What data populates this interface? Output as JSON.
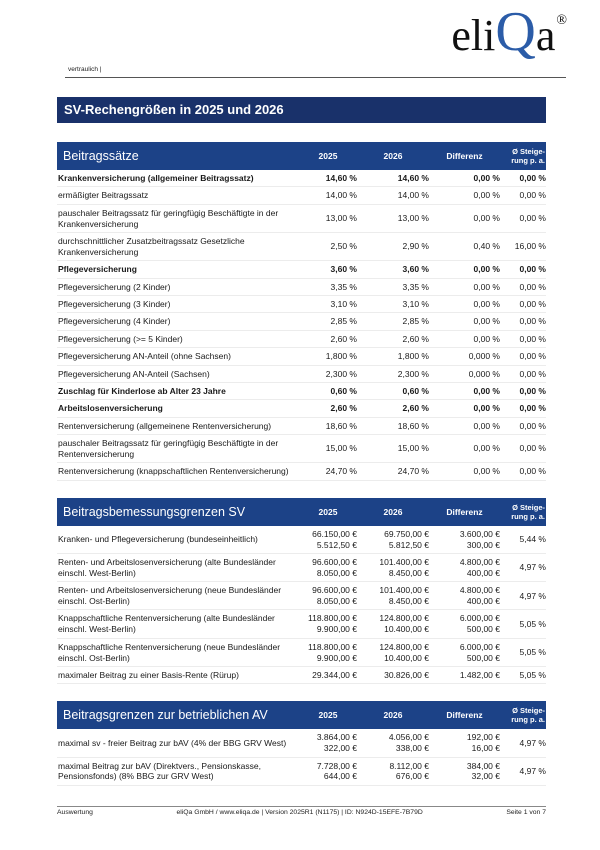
{
  "header": {
    "confidential": "vertraulich |",
    "logo": {
      "prefix": "eli",
      "accent": "Q",
      "suffix": "a",
      "registered": "®"
    },
    "title": "SV-Rechengrößen in 2025 und 2026"
  },
  "columns": {
    "year1": "2025",
    "year2": "2026",
    "diff": "Differenz",
    "steig_l1": "Ø Steige-",
    "steig_l2": "rung p. a."
  },
  "colors": {
    "title_bar": "#19316A",
    "table_header": "#1C4287",
    "logo_accent": "#2B5CA8"
  },
  "tables": [
    {
      "title": "Beitragssätze",
      "rows": [
        {
          "label": "Krankenversicherung (allgemeiner Beitragssatz)",
          "bold": true,
          "c2025": [
            "14,60 %"
          ],
          "c2026": [
            "14,60 %"
          ],
          "diff": [
            "0,00 %"
          ],
          "steig": [
            "0,00 %"
          ]
        },
        {
          "label": "ermäßigter Beitragssatz",
          "bold": false,
          "c2025": [
            "14,00 %"
          ],
          "c2026": [
            "14,00 %"
          ],
          "diff": [
            "0,00 %"
          ],
          "steig": [
            "0,00 %"
          ]
        },
        {
          "label": "pauschaler Beitragssatz für geringfügig Beschäftigte in der Krankenversicherung",
          "bold": false,
          "c2025": [
            "13,00 %"
          ],
          "c2026": [
            "13,00 %"
          ],
          "diff": [
            "0,00 %"
          ],
          "steig": [
            "0,00 %"
          ]
        },
        {
          "label": "durchschnittlicher Zusatzbeitragssatz Gesetzliche Krankenversicherung",
          "bold": false,
          "c2025": [
            "2,50 %"
          ],
          "c2026": [
            "2,90 %"
          ],
          "diff": [
            "0,40 %"
          ],
          "steig": [
            "16,00 %"
          ]
        },
        {
          "label": "Pflegeversicherung",
          "bold": true,
          "c2025": [
            "3,60 %"
          ],
          "c2026": [
            "3,60 %"
          ],
          "diff": [
            "0,00 %"
          ],
          "steig": [
            "0,00 %"
          ]
        },
        {
          "label": "Pflegeversicherung (2 Kinder)",
          "bold": false,
          "c2025": [
            "3,35 %"
          ],
          "c2026": [
            "3,35 %"
          ],
          "diff": [
            "0,00 %"
          ],
          "steig": [
            "0,00 %"
          ]
        },
        {
          "label": "Pflegeversicherung (3 Kinder)",
          "bold": false,
          "c2025": [
            "3,10 %"
          ],
          "c2026": [
            "3,10 %"
          ],
          "diff": [
            "0,00 %"
          ],
          "steig": [
            "0,00 %"
          ]
        },
        {
          "label": "Pflegeversicherung (4 Kinder)",
          "bold": false,
          "c2025": [
            "2,85 %"
          ],
          "c2026": [
            "2,85 %"
          ],
          "diff": [
            "0,00 %"
          ],
          "steig": [
            "0,00 %"
          ]
        },
        {
          "label": "Pflegeversicherung (>= 5 Kinder)",
          "bold": false,
          "c2025": [
            "2,60 %"
          ],
          "c2026": [
            "2,60 %"
          ],
          "diff": [
            "0,00 %"
          ],
          "steig": [
            "0,00 %"
          ]
        },
        {
          "label": "Pflegeversicherung AN-Anteil (ohne Sachsen)",
          "bold": false,
          "c2025": [
            "1,800 %"
          ],
          "c2026": [
            "1,800 %"
          ],
          "diff": [
            "0,000 %"
          ],
          "steig": [
            "0,00 %"
          ]
        },
        {
          "label": "Pflegeversicherung AN-Anteil (Sachsen)",
          "bold": false,
          "c2025": [
            "2,300 %"
          ],
          "c2026": [
            "2,300 %"
          ],
          "diff": [
            "0,000 %"
          ],
          "steig": [
            "0,00 %"
          ]
        },
        {
          "label": "Zuschlag für Kinderlose ab Alter 23 Jahre",
          "bold": true,
          "c2025": [
            "0,60 %"
          ],
          "c2026": [
            "0,60 %"
          ],
          "diff": [
            "0,00 %"
          ],
          "steig": [
            "0,00 %"
          ]
        },
        {
          "label": "Arbeitslosenversicherung",
          "bold": true,
          "c2025": [
            "2,60 %"
          ],
          "c2026": [
            "2,60 %"
          ],
          "diff": [
            "0,00 %"
          ],
          "steig": [
            "0,00 %"
          ]
        },
        {
          "label": "Rentenversicherung (allgemeinene Rentenversicherung)",
          "bold": false,
          "c2025": [
            "18,60 %"
          ],
          "c2026": [
            "18,60 %"
          ],
          "diff": [
            "0,00 %"
          ],
          "steig": [
            "0,00 %"
          ]
        },
        {
          "label": "pauschaler Beitragssatz für geringfügig Beschäftigte in der Rentenversicherung",
          "bold": false,
          "c2025": [
            "15,00 %"
          ],
          "c2026": [
            "15,00 %"
          ],
          "diff": [
            "0,00 %"
          ],
          "steig": [
            "0,00 %"
          ]
        },
        {
          "label": "Rentenversicherung (knappschaftlichen Rentenversicherung)",
          "bold": false,
          "c2025": [
            "24,70 %"
          ],
          "c2026": [
            "24,70 %"
          ],
          "diff": [
            "0,00 %"
          ],
          "steig": [
            "0,00 %"
          ]
        }
      ]
    },
    {
      "title": "Beitragsbemessungsgrenzen SV",
      "rows": [
        {
          "label": "Kranken- und Pflegeversicherung (bundeseinheitlich)",
          "bold": false,
          "c2025": [
            "66.150,00 €",
            "5.512,50 €"
          ],
          "c2026": [
            "69.750,00 €",
            "5.812,50 €"
          ],
          "diff": [
            "3.600,00 €",
            "300,00 €"
          ],
          "steig": [
            "5,44 %"
          ]
        },
        {
          "label": "Renten- und Arbeitslosenversicherung (alte Bundesländer einschl. West-Berlin)",
          "bold": false,
          "c2025": [
            "96.600,00 €",
            "8.050,00 €"
          ],
          "c2026": [
            "101.400,00 €",
            "8.450,00 €"
          ],
          "diff": [
            "4.800,00 €",
            "400,00 €"
          ],
          "steig": [
            "4,97 %"
          ]
        },
        {
          "label": "Renten- und Arbeitslosenversicherung (neue Bundesländer einschl. Ost-Berlin)",
          "bold": false,
          "c2025": [
            "96.600,00 €",
            "8.050,00 €"
          ],
          "c2026": [
            "101.400,00 €",
            "8.450,00 €"
          ],
          "diff": [
            "4.800,00 €",
            "400,00 €"
          ],
          "steig": [
            "4,97 %"
          ]
        },
        {
          "label": "Knappschaftliche Rentenversicherung (alte Bundesländer einschl. West-Berlin)",
          "bold": false,
          "c2025": [
            "118.800,00 €",
            "9.900,00 €"
          ],
          "c2026": [
            "124.800,00 €",
            "10.400,00 €"
          ],
          "diff": [
            "6.000,00 €",
            "500,00 €"
          ],
          "steig": [
            "5,05 %"
          ]
        },
        {
          "label": "Knappschaftliche Rentenversicherung (neue Bundesländer einschl. Ost-Berlin)",
          "bold": false,
          "c2025": [
            "118.800,00 €",
            "9.900,00 €"
          ],
          "c2026": [
            "124.800,00 €",
            "10.400,00 €"
          ],
          "diff": [
            "6.000,00 €",
            "500,00 €"
          ],
          "steig": [
            "5,05 %"
          ]
        },
        {
          "label": "maximaler Beitrag zu einer Basis-Rente (Rürup)",
          "bold": false,
          "c2025": [
            "29.344,00 €"
          ],
          "c2026": [
            "30.826,00 €"
          ],
          "diff": [
            "1.482,00 €"
          ],
          "steig": [
            "5,05 %"
          ]
        }
      ]
    },
    {
      "title": "Beitragsgrenzen zur betrieblichen AV",
      "rows": [
        {
          "label": "maximal sv - freier Beitrag zur bAV (4% der BBG GRV West)",
          "bold": false,
          "c2025": [
            "3.864,00 €",
            "322,00 €"
          ],
          "c2026": [
            "4.056,00 €",
            "338,00 €"
          ],
          "diff": [
            "192,00 €",
            "16,00 €"
          ],
          "steig": [
            "4,97 %"
          ]
        },
        {
          "label": "maximal Beitrag zur bAV (Direktvers., Pensionskasse, Pensionsfonds) (8% BBG zur GRV West)",
          "bold": false,
          "c2025": [
            "7.728,00 €",
            "644,00 €"
          ],
          "c2026": [
            "8.112,00 €",
            "676,00 €"
          ],
          "diff": [
            "384,00 €",
            "32,00 €"
          ],
          "steig": [
            "4,97 %"
          ]
        }
      ]
    }
  ],
  "footer": {
    "left": "Auswertung",
    "center": "eliQa GmbH / www.eliqa.de | Version 2025R1 (N1175) | ID: N924D-15EFE-7B79D",
    "right": "Seite 1 von 7"
  }
}
